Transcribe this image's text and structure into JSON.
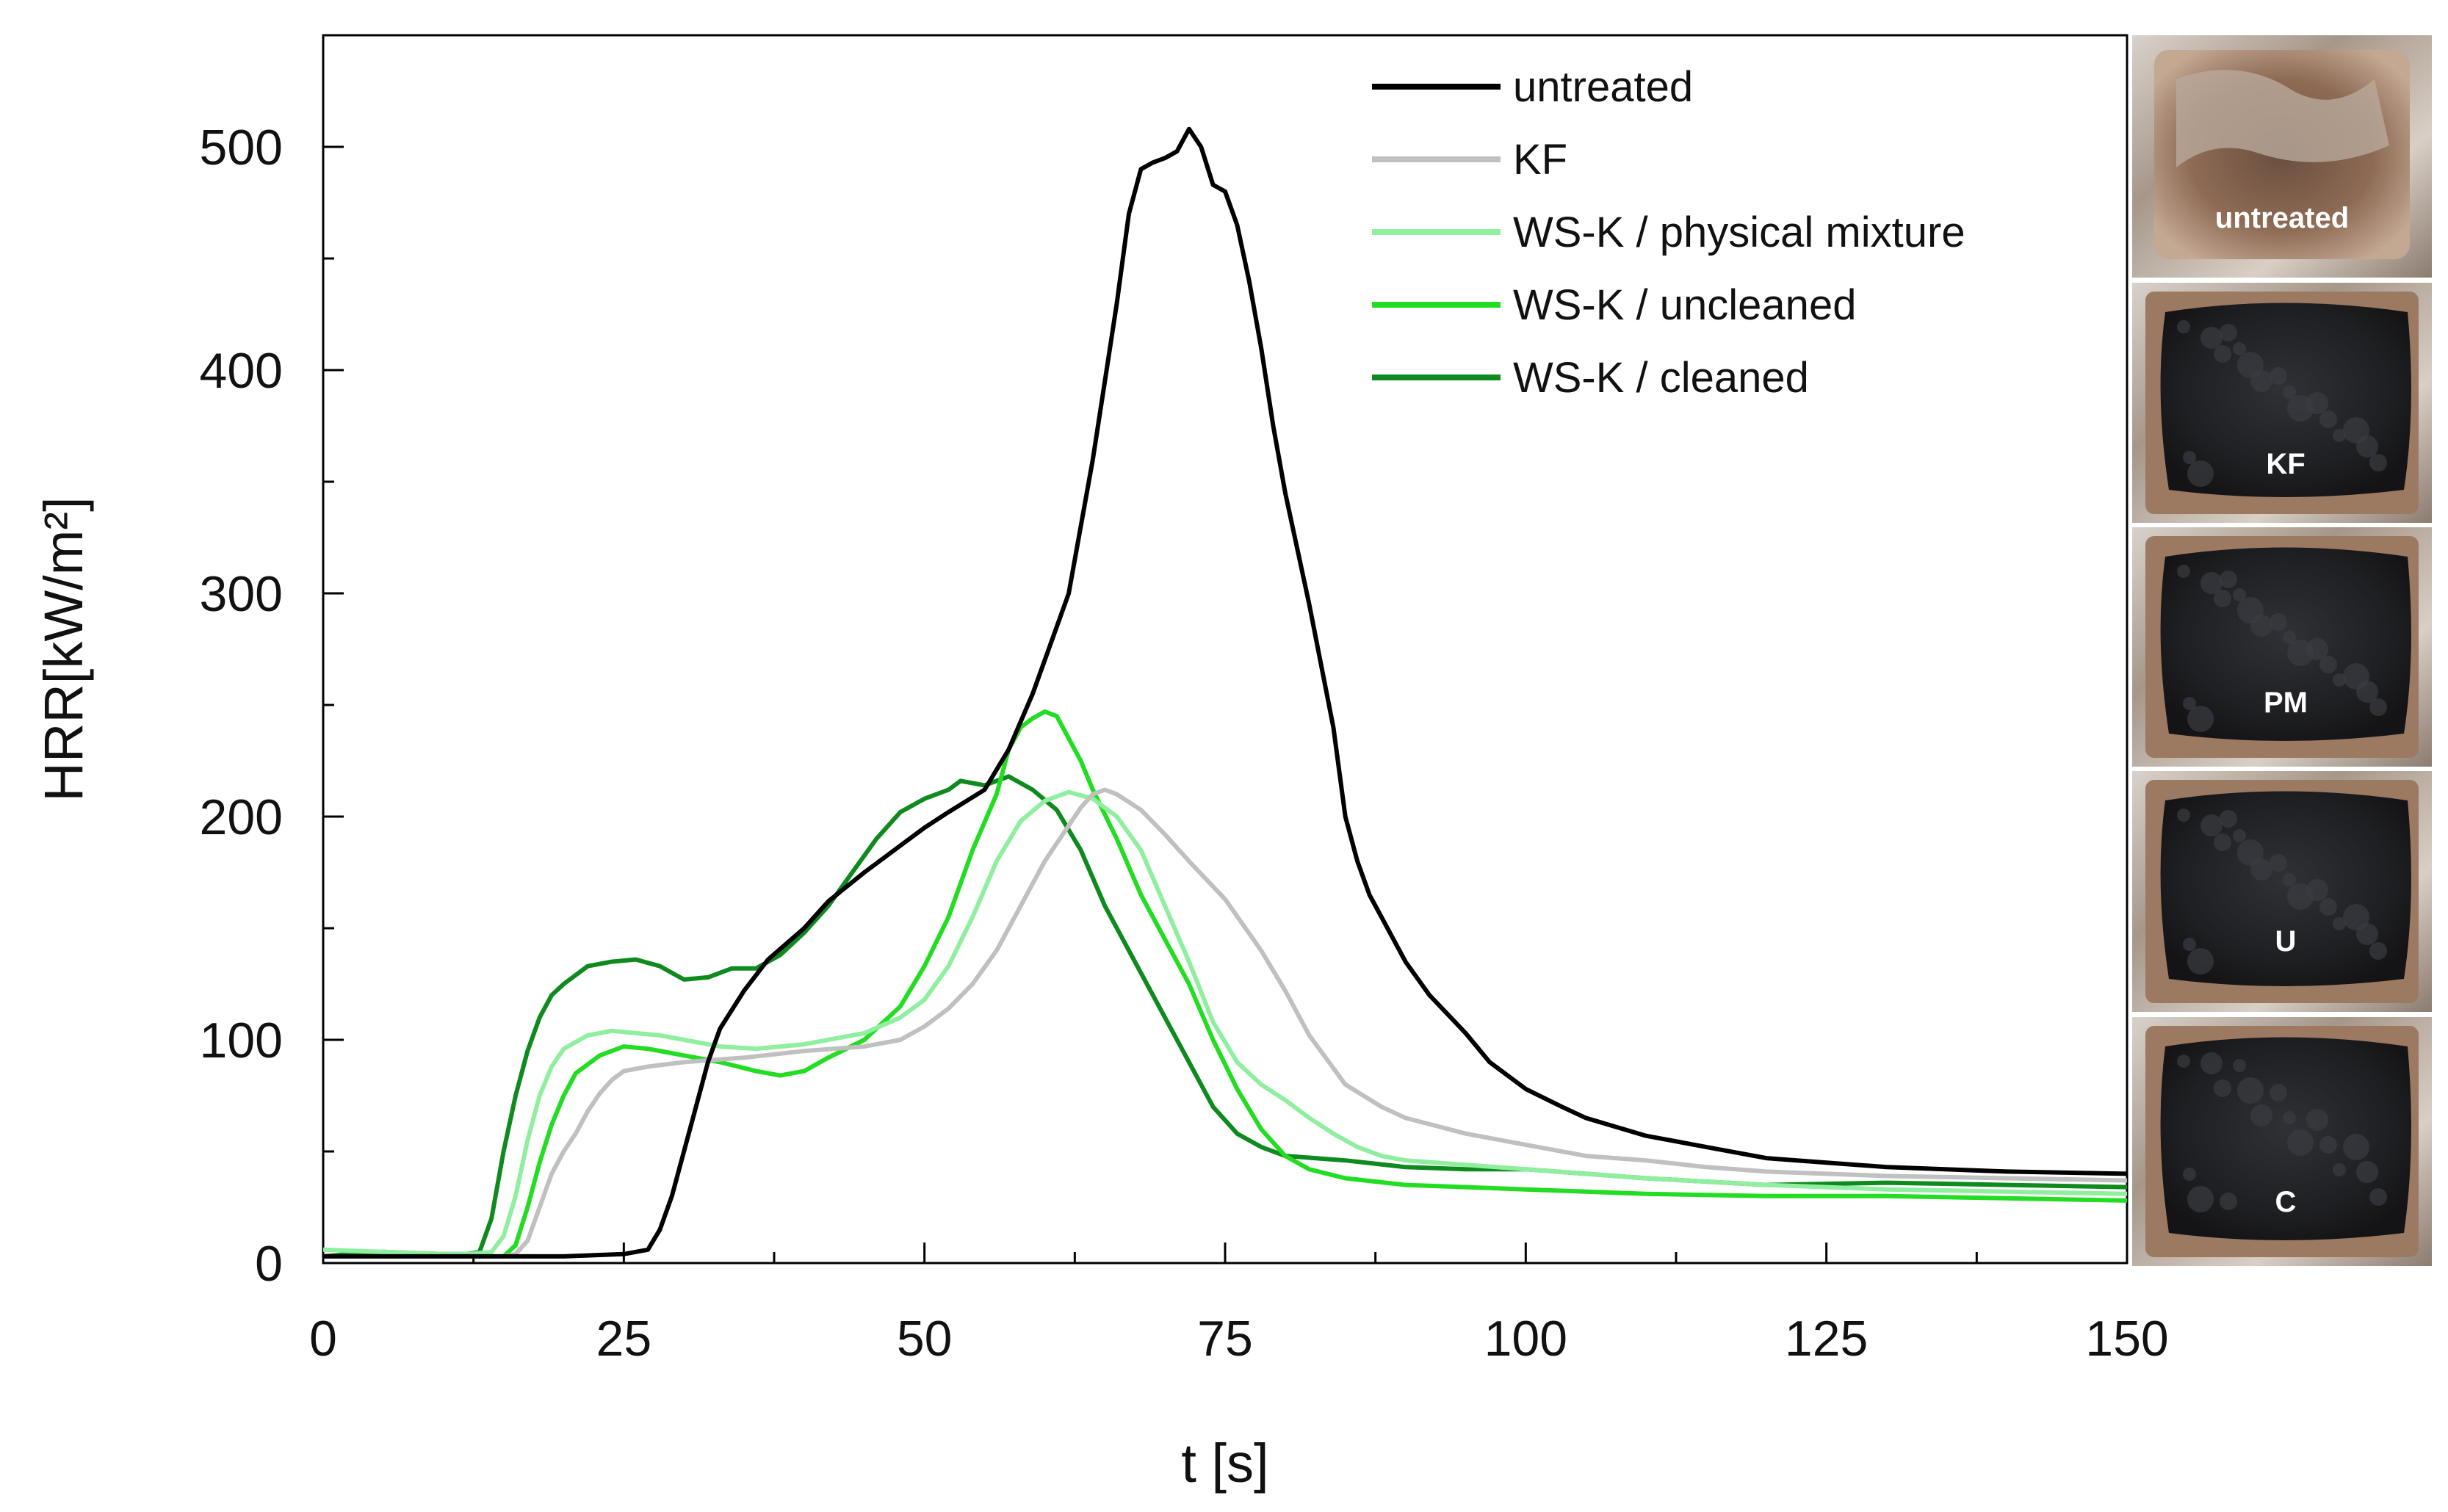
{
  "chart_data": {
    "type": "line",
    "title": "",
    "xlabel": "t [s]",
    "ylabel": "HRR[kW/m²]",
    "xlim": [
      0,
      150
    ],
    "ylim": [
      0,
      550
    ],
    "xticks": [
      0,
      25,
      50,
      75,
      100,
      125,
      150
    ],
    "yticks": [
      0,
      100,
      200,
      300,
      400,
      500
    ],
    "xtick_labels": [
      "0",
      "25",
      "50",
      "75",
      "100",
      "125",
      "150"
    ],
    "ytick_labels": [
      "0",
      "100",
      "200",
      "300",
      "400",
      "500"
    ],
    "legend_position": "top-right",
    "series": [
      {
        "name": "untreated",
        "color": "#000000",
        "points": [
          [
            0,
            3
          ],
          [
            5,
            3
          ],
          [
            10,
            3
          ],
          [
            15,
            3
          ],
          [
            20,
            3
          ],
          [
            25,
            4
          ],
          [
            27,
            6
          ],
          [
            28,
            15
          ],
          [
            29,
            30
          ],
          [
            30,
            50
          ],
          [
            31,
            70
          ],
          [
            32,
            90
          ],
          [
            33,
            105
          ],
          [
            35,
            122
          ],
          [
            37,
            136
          ],
          [
            40,
            150
          ],
          [
            42,
            162
          ],
          [
            45,
            175
          ],
          [
            48,
            187
          ],
          [
            50,
            195
          ],
          [
            52,
            202
          ],
          [
            55,
            212
          ],
          [
            57,
            230
          ],
          [
            59,
            255
          ],
          [
            60,
            270
          ],
          [
            62,
            300
          ],
          [
            63,
            330
          ],
          [
            64,
            360
          ],
          [
            65,
            395
          ],
          [
            66,
            430
          ],
          [
            67,
            470
          ],
          [
            68,
            490
          ],
          [
            69,
            493
          ],
          [
            70,
            495
          ],
          [
            71,
            498
          ],
          [
            72,
            508
          ],
          [
            73,
            500
          ],
          [
            74,
            483
          ],
          [
            75,
            480
          ],
          [
            76,
            465
          ],
          [
            77,
            440
          ],
          [
            78,
            410
          ],
          [
            79,
            375
          ],
          [
            80,
            345
          ],
          [
            82,
            295
          ],
          [
            84,
            240
          ],
          [
            85,
            200
          ],
          [
            86,
            180
          ],
          [
            87,
            165
          ],
          [
            88,
            155
          ],
          [
            90,
            135
          ],
          [
            92,
            120
          ],
          [
            95,
            103
          ],
          [
            97,
            90
          ],
          [
            100,
            78
          ],
          [
            103,
            70
          ],
          [
            105,
            65
          ],
          [
            110,
            57
          ],
          [
            115,
            52
          ],
          [
            120,
            47
          ],
          [
            125,
            45
          ],
          [
            130,
            43
          ],
          [
            140,
            41
          ],
          [
            150,
            40
          ]
        ]
      },
      {
        "name": "KF",
        "color": "#c0c0c0",
        "points": [
          [
            0,
            3
          ],
          [
            10,
            3
          ],
          [
            15,
            3
          ],
          [
            16,
            4
          ],
          [
            17,
            10
          ],
          [
            18,
            25
          ],
          [
            19,
            40
          ],
          [
            20,
            50
          ],
          [
            21,
            58
          ],
          [
            22,
            68
          ],
          [
            23,
            76
          ],
          [
            24,
            82
          ],
          [
            25,
            86
          ],
          [
            27,
            88
          ],
          [
            30,
            90
          ],
          [
            35,
            92
          ],
          [
            40,
            95
          ],
          [
            45,
            97
          ],
          [
            48,
            100
          ],
          [
            50,
            106
          ],
          [
            52,
            114
          ],
          [
            54,
            125
          ],
          [
            56,
            140
          ],
          [
            58,
            160
          ],
          [
            60,
            180
          ],
          [
            62,
            196
          ],
          [
            63,
            204
          ],
          [
            64,
            210
          ],
          [
            65,
            212
          ],
          [
            66,
            210
          ],
          [
            68,
            203
          ],
          [
            70,
            192
          ],
          [
            72,
            180
          ],
          [
            75,
            163
          ],
          [
            78,
            140
          ],
          [
            80,
            122
          ],
          [
            82,
            102
          ],
          [
            85,
            80
          ],
          [
            88,
            70
          ],
          [
            90,
            65
          ],
          [
            95,
            58
          ],
          [
            100,
            53
          ],
          [
            105,
            48
          ],
          [
            110,
            46
          ],
          [
            115,
            43
          ],
          [
            120,
            41
          ],
          [
            125,
            40
          ],
          [
            130,
            39
          ],
          [
            140,
            38
          ],
          [
            150,
            37
          ]
        ]
      },
      {
        "name": "WS-K / physical mixture",
        "color": "#8fef9f",
        "points": [
          [
            0,
            6
          ],
          [
            5,
            5
          ],
          [
            10,
            4
          ],
          [
            12,
            4
          ],
          [
            14,
            5
          ],
          [
            15,
            12
          ],
          [
            16,
            30
          ],
          [
            17,
            55
          ],
          [
            18,
            75
          ],
          [
            19,
            88
          ],
          [
            20,
            96
          ],
          [
            22,
            102
          ],
          [
            24,
            104
          ],
          [
            26,
            103
          ],
          [
            28,
            102
          ],
          [
            30,
            100
          ],
          [
            33,
            97
          ],
          [
            36,
            96
          ],
          [
            40,
            98
          ],
          [
            45,
            103
          ],
          [
            48,
            110
          ],
          [
            50,
            118
          ],
          [
            52,
            133
          ],
          [
            54,
            155
          ],
          [
            56,
            180
          ],
          [
            58,
            198
          ],
          [
            60,
            207
          ],
          [
            62,
            211
          ],
          [
            64,
            208
          ],
          [
            66,
            200
          ],
          [
            68,
            185
          ],
          [
            70,
            160
          ],
          [
            72,
            135
          ],
          [
            74,
            108
          ],
          [
            76,
            90
          ],
          [
            78,
            80
          ],
          [
            80,
            73
          ],
          [
            82,
            65
          ],
          [
            84,
            58
          ],
          [
            86,
            52
          ],
          [
            88,
            48
          ],
          [
            90,
            46
          ],
          [
            95,
            44
          ],
          [
            100,
            42
          ],
          [
            110,
            38
          ],
          [
            120,
            35
          ],
          [
            130,
            33
          ],
          [
            140,
            32
          ],
          [
            150,
            31
          ]
        ]
      },
      {
        "name": "WS-K / uncleaned",
        "color": "#22dd22",
        "points": [
          [
            0,
            3
          ],
          [
            5,
            3
          ],
          [
            10,
            3
          ],
          [
            15,
            3
          ],
          [
            16,
            8
          ],
          [
            17,
            25
          ],
          [
            18,
            45
          ],
          [
            19,
            62
          ],
          [
            20,
            75
          ],
          [
            21,
            85
          ],
          [
            23,
            93
          ],
          [
            25,
            97
          ],
          [
            27,
            96
          ],
          [
            30,
            93
          ],
          [
            33,
            90
          ],
          [
            36,
            86
          ],
          [
            38,
            84
          ],
          [
            40,
            86
          ],
          [
            42,
            92
          ],
          [
            45,
            100
          ],
          [
            48,
            115
          ],
          [
            50,
            133
          ],
          [
            52,
            155
          ],
          [
            54,
            185
          ],
          [
            56,
            210
          ],
          [
            57,
            230
          ],
          [
            58,
            240
          ],
          [
            59,
            244
          ],
          [
            60,
            247
          ],
          [
            61,
            245
          ],
          [
            62,
            235
          ],
          [
            63,
            225
          ],
          [
            64,
            212
          ],
          [
            66,
            190
          ],
          [
            68,
            165
          ],
          [
            70,
            145
          ],
          [
            72,
            125
          ],
          [
            74,
            100
          ],
          [
            76,
            78
          ],
          [
            78,
            60
          ],
          [
            80,
            48
          ],
          [
            82,
            42
          ],
          [
            85,
            38
          ],
          [
            90,
            35
          ],
          [
            100,
            33
          ],
          [
            110,
            31
          ],
          [
            120,
            30
          ],
          [
            130,
            30
          ],
          [
            140,
            29
          ],
          [
            150,
            28
          ]
        ]
      },
      {
        "name": "WS-K / cleaned",
        "color": "#0e8a1e",
        "points": [
          [
            0,
            3
          ],
          [
            2,
            4
          ],
          [
            5,
            5
          ],
          [
            10,
            4
          ],
          [
            12,
            4
          ],
          [
            13,
            5
          ],
          [
            14,
            20
          ],
          [
            15,
            50
          ],
          [
            16,
            75
          ],
          [
            17,
            95
          ],
          [
            18,
            110
          ],
          [
            19,
            120
          ],
          [
            20,
            125
          ],
          [
            22,
            133
          ],
          [
            24,
            135
          ],
          [
            26,
            136
          ],
          [
            28,
            133
          ],
          [
            30,
            127
          ],
          [
            32,
            128
          ],
          [
            34,
            132
          ],
          [
            36,
            132
          ],
          [
            38,
            138
          ],
          [
            40,
            148
          ],
          [
            42,
            160
          ],
          [
            44,
            175
          ],
          [
            46,
            190
          ],
          [
            48,
            202
          ],
          [
            50,
            208
          ],
          [
            52,
            212
          ],
          [
            53,
            216
          ],
          [
            55,
            214
          ],
          [
            57,
            218
          ],
          [
            59,
            212
          ],
          [
            61,
            203
          ],
          [
            63,
            185
          ],
          [
            65,
            160
          ],
          [
            67,
            140
          ],
          [
            70,
            110
          ],
          [
            72,
            90
          ],
          [
            74,
            70
          ],
          [
            76,
            58
          ],
          [
            78,
            52
          ],
          [
            80,
            48
          ],
          [
            85,
            46
          ],
          [
            90,
            43
          ],
          [
            95,
            42
          ],
          [
            100,
            42
          ],
          [
            110,
            38
          ],
          [
            120,
            35
          ],
          [
            130,
            36
          ],
          [
            140,
            35
          ],
          [
            150,
            34
          ]
        ]
      }
    ]
  },
  "photo_strip": {
    "labels": [
      "untreated",
      "KF",
      "PM",
      "U",
      "C"
    ]
  }
}
